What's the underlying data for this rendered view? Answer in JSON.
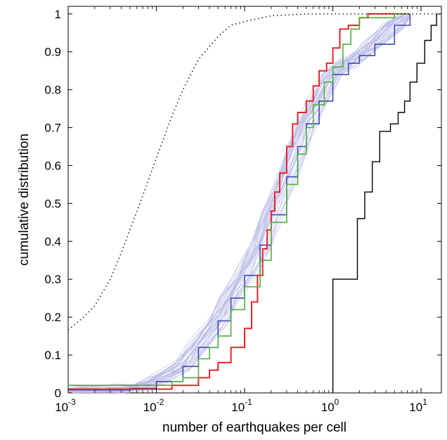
{
  "chart_data": {
    "type": "line",
    "title": "",
    "xlabel": "number of earthquakes  per cell",
    "ylabel": "cumulative distribution",
    "x_scale": "log",
    "xlim": [
      0.001,
      17
    ],
    "ylim": [
      0,
      1.02
    ],
    "grid": false,
    "legend": "none",
    "x_ticks": [
      {
        "base": "10",
        "exp": "-3",
        "value": 0.001
      },
      {
        "base": "10",
        "exp": "-2",
        "value": 0.01
      },
      {
        "base": "10",
        "exp": "-1",
        "value": 0.1
      },
      {
        "base": "10",
        "exp": "0",
        "value": 1
      },
      {
        "base": "10",
        "exp": "1",
        "value": 10
      }
    ],
    "y_ticks": [
      "0",
      "0.1",
      "0.2",
      "0.3",
      "0.4",
      "0.5",
      "0.6",
      "0.7",
      "0.8",
      "0.9",
      "1"
    ],
    "y_tick_values": [
      0,
      0.1,
      0.2,
      0.3,
      0.4,
      0.5,
      0.6,
      0.7,
      0.8,
      0.9,
      1
    ],
    "ensemble": {
      "color": "#b8b8e6",
      "members": 30,
      "center": [
        [
          0.001,
          0.008
        ],
        [
          0.005,
          0.012
        ],
        [
          0.01,
          0.03
        ],
        [
          0.02,
          0.07
        ],
        [
          0.03,
          0.12
        ],
        [
          0.05,
          0.19
        ],
        [
          0.07,
          0.25
        ],
        [
          0.1,
          0.31
        ],
        [
          0.15,
          0.39
        ],
        [
          0.2,
          0.47
        ],
        [
          0.3,
          0.57
        ],
        [
          0.4,
          0.65
        ],
        [
          0.5,
          0.71
        ],
        [
          0.7,
          0.77
        ],
        [
          1.0,
          0.84
        ],
        [
          1.5,
          0.87
        ],
        [
          2.0,
          0.89
        ],
        [
          3.0,
          0.92
        ],
        [
          5.0,
          0.97
        ],
        [
          7.5,
          1.0
        ]
      ]
    },
    "series": [
      {
        "color": "#3b4bb0",
        "style": "solid",
        "width": 1.6,
        "points": [
          [
            0.001,
            0.008
          ],
          [
            0.005,
            0.012
          ],
          [
            0.01,
            0.03
          ],
          [
            0.02,
            0.07
          ],
          [
            0.03,
            0.12
          ],
          [
            0.05,
            0.19
          ],
          [
            0.07,
            0.25
          ],
          [
            0.1,
            0.31
          ],
          [
            0.15,
            0.39
          ],
          [
            0.2,
            0.47
          ],
          [
            0.3,
            0.57
          ],
          [
            0.4,
            0.65
          ],
          [
            0.5,
            0.71
          ],
          [
            0.7,
            0.77
          ],
          [
            1.0,
            0.84
          ],
          [
            1.5,
            0.87
          ],
          [
            2.0,
            0.89
          ],
          [
            3.0,
            0.92
          ],
          [
            5.0,
            0.97
          ],
          [
            7.5,
            1.0
          ]
        ]
      },
      {
        "color": "#e8232a",
        "style": "solid",
        "width": 2,
        "points": [
          [
            0.001,
            0.01
          ],
          [
            0.012,
            0.01
          ],
          [
            0.015,
            0.02
          ],
          [
            0.03,
            0.04
          ],
          [
            0.04,
            0.06
          ],
          [
            0.05,
            0.08
          ],
          [
            0.07,
            0.12
          ],
          [
            0.1,
            0.17
          ],
          [
            0.12,
            0.24
          ],
          [
            0.14,
            0.31
          ],
          [
            0.16,
            0.38
          ],
          [
            0.18,
            0.43
          ],
          [
            0.2,
            0.48
          ],
          [
            0.22,
            0.53
          ],
          [
            0.25,
            0.58
          ],
          [
            0.3,
            0.65
          ],
          [
            0.35,
            0.71
          ],
          [
            0.4,
            0.74
          ],
          [
            0.5,
            0.77
          ],
          [
            0.6,
            0.81
          ],
          [
            0.7,
            0.85
          ],
          [
            0.85,
            0.87
          ],
          [
            1.0,
            0.91
          ],
          [
            1.2,
            0.96
          ],
          [
            1.5,
            0.97
          ],
          [
            2.0,
            0.99
          ],
          [
            2.5,
            1.0
          ],
          [
            7.5,
            1.0
          ]
        ]
      },
      {
        "color": "#4caf3c",
        "style": "solid",
        "width": 1.6,
        "points": [
          [
            0.001,
            0.02
          ],
          [
            0.01,
            0.02
          ],
          [
            0.015,
            0.03
          ],
          [
            0.02,
            0.04
          ],
          [
            0.03,
            0.09
          ],
          [
            0.04,
            0.12
          ],
          [
            0.05,
            0.15
          ],
          [
            0.07,
            0.22
          ],
          [
            0.1,
            0.28
          ],
          [
            0.15,
            0.35
          ],
          [
            0.2,
            0.45
          ],
          [
            0.3,
            0.55
          ],
          [
            0.4,
            0.63
          ],
          [
            0.5,
            0.7
          ],
          [
            0.6,
            0.76
          ],
          [
            0.8,
            0.82
          ],
          [
            1.0,
            0.86
          ],
          [
            1.3,
            0.92
          ],
          [
            1.6,
            0.96
          ],
          [
            2.0,
            0.99
          ],
          [
            3.0,
            0.99
          ],
          [
            5.0,
            1.0
          ],
          [
            7.5,
            1.0
          ]
        ]
      },
      {
        "color": "#000000",
        "style": "dotted",
        "width": 1.4,
        "points": [
          [
            0.001,
            0.166
          ],
          [
            0.0015,
            0.2
          ],
          [
            0.002,
            0.23
          ],
          [
            0.003,
            0.3
          ],
          [
            0.004,
            0.37
          ],
          [
            0.005,
            0.43
          ],
          [
            0.007,
            0.52
          ],
          [
            0.01,
            0.62
          ],
          [
            0.015,
            0.73
          ],
          [
            0.02,
            0.8
          ],
          [
            0.03,
            0.88
          ],
          [
            0.05,
            0.94
          ],
          [
            0.07,
            0.97
          ],
          [
            0.1,
            0.98
          ],
          [
            0.2,
            0.995
          ],
          [
            0.5,
            1.0
          ],
          [
            17,
            1.0
          ]
        ]
      },
      {
        "color": "#000000",
        "style": "step",
        "width": 1.4,
        "points": [
          [
            1.0,
            0.0
          ],
          [
            1.0,
            0.3
          ],
          [
            1.9,
            0.3
          ],
          [
            1.9,
            0.46
          ],
          [
            2.3,
            0.46
          ],
          [
            2.3,
            0.53
          ],
          [
            2.8,
            0.53
          ],
          [
            2.8,
            0.61
          ],
          [
            3.4,
            0.61
          ],
          [
            3.4,
            0.69
          ],
          [
            4.0,
            0.69
          ],
          [
            4.5,
            0.71
          ],
          [
            5.5,
            0.74
          ],
          [
            6.5,
            0.77
          ],
          [
            7.5,
            0.82
          ],
          [
            9.0,
            0.87
          ],
          [
            11.0,
            0.93
          ],
          [
            13.0,
            0.97
          ],
          [
            15.0,
            1.0
          ]
        ]
      }
    ]
  }
}
